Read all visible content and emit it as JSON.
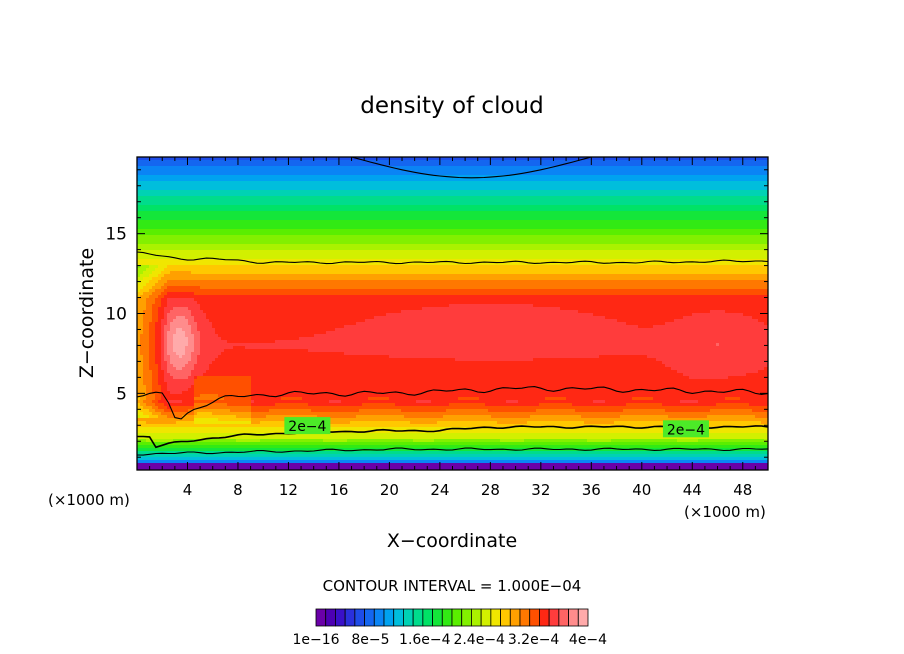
{
  "chart_data": {
    "type": "heatmap",
    "title": "density of cloud",
    "xlabel": "X−coordinate",
    "ylabel": "Z−coordinate",
    "x_unit_left": "(×1000 m)",
    "x_unit_right": "(×1000 m)",
    "xlim": [
      0,
      50
    ],
    "ylim": [
      0.2,
      19.8
    ],
    "xticks": [
      4,
      8,
      12,
      16,
      20,
      24,
      28,
      32,
      36,
      40,
      44,
      48
    ],
    "yticks": [
      5,
      10,
      15
    ],
    "contour_labels": [
      {
        "text": "2e−4",
        "x": 13.5,
        "z": 2.95
      },
      {
        "text": "2e−4",
        "x": 43.5,
        "z": 2.75
      }
    ],
    "contour_interval_label": "CONTOUR INTERVAL = 1.000E−04",
    "colorbar": {
      "colors": [
        "#6a00a8",
        "#4d00b3",
        "#3a10c8",
        "#2a30dc",
        "#1e4ce8",
        "#1466f0",
        "#0a84f5",
        "#00a2f0",
        "#00bedc",
        "#00d2b4",
        "#00dc8c",
        "#00e266",
        "#14e63a",
        "#32ea14",
        "#5aee00",
        "#82f000",
        "#aaf200",
        "#d2f000",
        "#f0e600",
        "#ffc800",
        "#ffa000",
        "#ff7800",
        "#ff5000",
        "#ff2814",
        "#ff3c3c",
        "#ff6464",
        "#ff8c8c",
        "#ffaaaa"
      ],
      "tick_labels": [
        "1e−16",
        "8e−5",
        "1.6e−4",
        "2.4e−4",
        "3.2e−4",
        "4e−4"
      ],
      "min": 1e-16,
      "max": 0.0004
    }
  }
}
